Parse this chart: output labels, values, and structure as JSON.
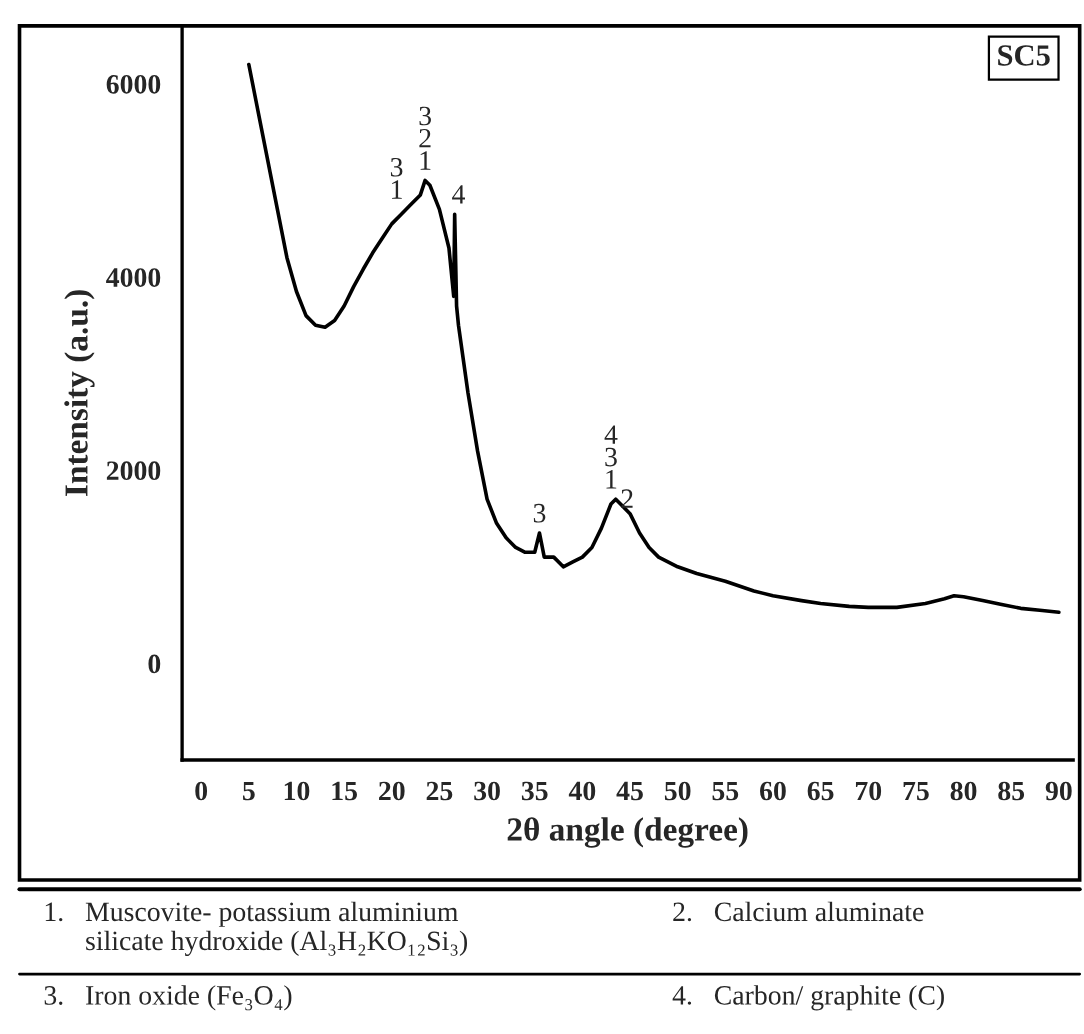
{
  "chart_data": {
    "type": "line",
    "xlabel": "2θ angle (degree)",
    "ylabel": "Intensity (a.u.)",
    "x": [
      5,
      6,
      7,
      8,
      9,
      10,
      11,
      12,
      13,
      14,
      15,
      16,
      17,
      18,
      19,
      20,
      21,
      22,
      23,
      23.5,
      24,
      25,
      26,
      26.5,
      26.6,
      26.8,
      27,
      28,
      29,
      30,
      31,
      32,
      33,
      34,
      35,
      35.5,
      36,
      37,
      38,
      39,
      40,
      41,
      42,
      43,
      43.5,
      44,
      45,
      46,
      47,
      48,
      50,
      52,
      55,
      58,
      60,
      63,
      65,
      68,
      70,
      73,
      76,
      78,
      79,
      80,
      82,
      84,
      86,
      88,
      90
    ],
    "series": [
      {
        "color": "#000000",
        "values": [
          6200,
          5700,
          5200,
          4700,
          4200,
          3850,
          3600,
          3500,
          3480,
          3550,
          3700,
          3900,
          4080,
          4250,
          4400,
          4550,
          4650,
          4750,
          4850,
          5000,
          4950,
          4700,
          4300,
          3800,
          4650,
          3700,
          3500,
          2800,
          2200,
          1700,
          1450,
          1300,
          1200,
          1150,
          1150,
          1350,
          1100,
          1100,
          1000,
          1050,
          1100,
          1200,
          1400,
          1650,
          1700,
          1650,
          1550,
          1350,
          1200,
          1100,
          1000,
          930,
          850,
          750,
          700,
          650,
          620,
          590,
          580,
          580,
          620,
          670,
          700,
          690,
          650,
          610,
          570,
          550,
          530
        ]
      }
    ],
    "xlim": [
      -2,
      91.5
    ],
    "ylim": [
      -1000,
      6600
    ],
    "xticks": [
      0,
      5,
      10,
      15,
      20,
      25,
      30,
      35,
      40,
      45,
      50,
      55,
      60,
      65,
      70,
      75,
      80,
      85,
      90
    ],
    "yticks": [
      0,
      2000,
      4000,
      6000
    ],
    "grid": false,
    "legend": false,
    "marker": "none",
    "line_style": "solid",
    "annotations": [
      {
        "text": "3\n1",
        "x": 20.5,
        "y": 4750
      },
      {
        "text": "3\n2\n1",
        "x": 23.5,
        "y": 5050
      },
      {
        "text": "4",
        "x": 27,
        "y": 4700
      },
      {
        "text": "3",
        "x": 35.5,
        "y": 1400
      },
      {
        "text": "4\n3\n1",
        "x": 43,
        "y": 1750
      },
      {
        "text": "2",
        "x": 44.7,
        "y": 1550
      },
      "SC5",
      "1.   Muscovite- potassium aluminium\n      silicate hydroxide (Al₃H₂KO₁₂Si₃)",
      "2.   Calcium aluminate",
      "3.   Iron oxide (Fe₃O₄)",
      "4.   Carbon/ graphite (C)"
    ]
  }
}
